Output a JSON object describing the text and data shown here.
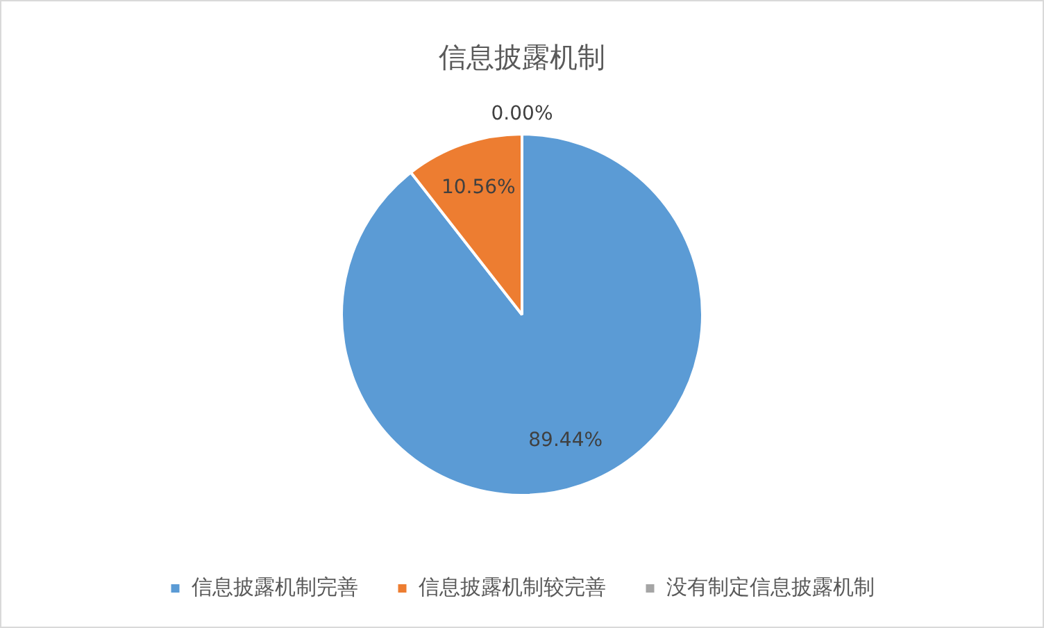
{
  "chart_data": {
    "type": "pie",
    "title": "信息披露机制",
    "categories": [
      "信息披露机制完善",
      "信息披露机制较完善",
      "没有制定信息披露机制"
    ],
    "values": [
      89.44,
      10.56,
      0.0
    ],
    "colors": [
      "#5b9bd5",
      "#ed7d31",
      "#a5a5a5"
    ],
    "value_labels": [
      "89.44%",
      "10.56%",
      "0.00%"
    ],
    "legend": "bottom"
  }
}
